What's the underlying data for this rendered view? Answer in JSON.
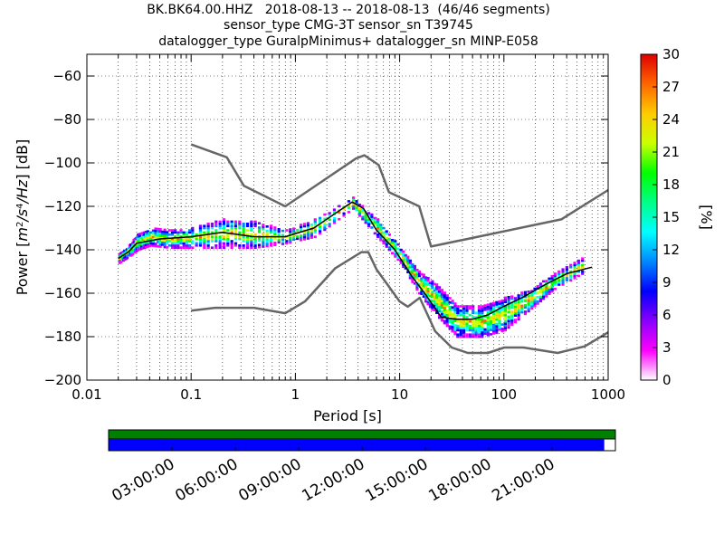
{
  "title": {
    "line1": "BK.BK64.00.HHZ   2018-08-13 -- 2018-08-13  (46/46 segments)",
    "line2": "sensor_type CMG-3T sensor_sn T39745",
    "line3": "datalogger_type GuralpMinimus+ datalogger_sn MINP-E058"
  },
  "chart_data": {
    "type": "heatmap",
    "xlabel": "Period [s]",
    "ylabel": "Power [m²/s⁴/Hz] [dB]",
    "x_scale": "log",
    "xlim": [
      0.01,
      1000
    ],
    "ylim": [
      -200,
      -50
    ],
    "x_ticks": [
      0.01,
      0.1,
      1,
      10,
      100,
      1000
    ],
    "x_tick_labels": [
      "0.01",
      "0.1",
      "1",
      "10",
      "100",
      "1000"
    ],
    "y_ticks": [
      -60,
      -80,
      -100,
      -120,
      -140,
      -160,
      -180,
      -200
    ],
    "y_tick_labels": [
      "−60",
      "−80",
      "−100",
      "−120",
      "−140",
      "−160",
      "−180",
      "−200"
    ],
    "grid": true,
    "colorbar": {
      "label": "[%]",
      "min": 0,
      "max": 30,
      "ticks": [
        0,
        3,
        6,
        9,
        12,
        15,
        18,
        21,
        24,
        27,
        30
      ],
      "colors": [
        "#ffffff",
        "#ff00ff",
        "#8800ff",
        "#0000ff",
        "#0088ff",
        "#00ffff",
        "#00ff88",
        "#00ff00",
        "#ccff00",
        "#ffcc00",
        "#ff6600",
        "#dd0000"
      ]
    },
    "nhnm": {
      "name": "NHNM",
      "x": [
        0.1,
        0.22,
        0.32,
        0.8,
        3.8,
        4.6,
        6.3,
        7.9,
        15.4,
        20,
        354.8,
        1000
      ],
      "y": [
        -91.5,
        -97.4,
        -110.5,
        -120,
        -98,
        -96.5,
        -101,
        -113.5,
        -120,
        -138.5,
        -126,
        -112.5
      ]
    },
    "nlnm": {
      "name": "NLNM",
      "x": [
        0.1,
        0.17,
        0.4,
        0.8,
        1.24,
        2.4,
        4.3,
        5,
        6,
        10,
        12,
        15.6,
        21.9,
        31.6,
        45,
        70,
        101,
        154,
        328,
        600,
        1000
      ],
      "y": [
        -168,
        -166.7,
        -166.7,
        -169.2,
        -163.7,
        -148.6,
        -141.1,
        -141.1,
        -149,
        -163.8,
        -166.2,
        -162.1,
        -177.5,
        -185,
        -187.5,
        -187.5,
        -185,
        -185,
        -187.5,
        -184.4,
        -178
      ]
    },
    "mode": {
      "name": "mode",
      "x": [
        0.02,
        0.025,
        0.03,
        0.05,
        0.1,
        0.2,
        0.4,
        0.8,
        1.5,
        3.5,
        4.5,
        6,
        9,
        13,
        18,
        25,
        35,
        50,
        70,
        100,
        150,
        250,
        400,
        700
      ],
      "y": [
        -144,
        -141,
        -137,
        -135,
        -134,
        -132,
        -134,
        -134,
        -130,
        -118,
        -121,
        -131,
        -140,
        -152,
        -161,
        -171,
        -172,
        -172,
        -170,
        -166,
        -162,
        -156,
        -151,
        -148
      ]
    },
    "scatter_points": [
      {
        "x": 0.02,
        "ymin": -146,
        "ymax": -142
      },
      {
        "x": 0.025,
        "ymin": -143,
        "ymax": -138
      },
      {
        "x": 0.03,
        "ymin": -140,
        "ymax": -133
      },
      {
        "x": 0.04,
        "ymin": -138,
        "ymax": -130
      },
      {
        "x": 0.06,
        "ymin": -139,
        "ymax": -131
      },
      {
        "x": 0.1,
        "ymin": -139,
        "ymax": -130
      },
      {
        "x": 0.2,
        "ymin": -139,
        "ymax": -126
      },
      {
        "x": 0.4,
        "ymin": -139,
        "ymax": -127
      },
      {
        "x": 0.8,
        "ymin": -137,
        "ymax": -131
      },
      {
        "x": 1.5,
        "ymin": -134,
        "ymax": -126
      },
      {
        "x": 3.5,
        "ymin": -121,
        "ymax": -116
      },
      {
        "x": 6,
        "ymin": -134,
        "ymax": -126
      },
      {
        "x": 10,
        "ymin": -146,
        "ymax": -139
      },
      {
        "x": 15,
        "ymin": -160,
        "ymax": -150
      },
      {
        "x": 22,
        "ymin": -170,
        "ymax": -156
      },
      {
        "x": 35,
        "ymin": -180,
        "ymax": -166
      },
      {
        "x": 60,
        "ymin": -180,
        "ymax": -166
      },
      {
        "x": 100,
        "ymin": -177,
        "ymax": -162
      },
      {
        "x": 180,
        "ymin": -167,
        "ymax": -158
      },
      {
        "x": 300,
        "ymin": -158,
        "ymax": -151
      },
      {
        "x": 600,
        "ymin": -150,
        "ymax": -143
      }
    ],
    "coverage": {
      "time_labels": [
        "03:00:00",
        "06:00:00",
        "09:00:00",
        "12:00:00",
        "15:00:00",
        "18:00:00",
        "21:00:00"
      ],
      "time_hours": [
        3,
        6,
        9,
        12,
        15,
        18,
        21
      ],
      "span_hours": [
        0,
        24
      ],
      "data_color": "#008000",
      "used_color": "#0000ff",
      "used_fraction": 0.978
    }
  }
}
